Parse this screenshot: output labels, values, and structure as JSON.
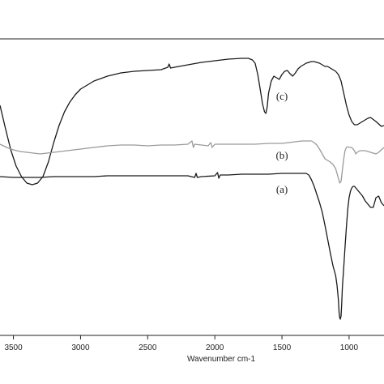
{
  "chart_data": {
    "type": "line",
    "title": "",
    "xlabel": "Wavenumber cm-1",
    "ylabel": "",
    "xlim": [
      3600,
      740
    ],
    "x_reversed": true,
    "grid": false,
    "x_ticks": [
      {
        "value": 3500,
        "label": "3500"
      },
      {
        "value": 3000,
        "label": "3000"
      },
      {
        "value": 2500,
        "label": "2500"
      },
      {
        "value": 2000,
        "label": "2000"
      },
      {
        "value": 1500,
        "label": "1500"
      },
      {
        "value": 1000,
        "label": "1000"
      }
    ],
    "series": [
      {
        "name": "(c)",
        "label_at": [
          1500,
          123
        ],
        "color": "#1a1a1a",
        "points": [
          [
            3600,
            130
          ],
          [
            3560,
            158
          ],
          [
            3520,
            185
          ],
          [
            3480,
            205
          ],
          [
            3440,
            218
          ],
          [
            3400,
            226
          ],
          [
            3360,
            228
          ],
          [
            3320,
            226
          ],
          [
            3280,
            218
          ],
          [
            3240,
            200
          ],
          [
            3200,
            176
          ],
          [
            3160,
            155
          ],
          [
            3120,
            138
          ],
          [
            3080,
            126
          ],
          [
            3040,
            117
          ],
          [
            3000,
            110
          ],
          [
            2900,
            100
          ],
          [
            2800,
            94
          ],
          [
            2700,
            90
          ],
          [
            2600,
            88
          ],
          [
            2500,
            87
          ],
          [
            2400,
            86
          ],
          [
            2350,
            83
          ],
          [
            2340,
            79
          ],
          [
            2330,
            84
          ],
          [
            2300,
            83
          ],
          [
            2200,
            80
          ],
          [
            2100,
            77
          ],
          [
            2000,
            75
          ],
          [
            1900,
            73
          ],
          [
            1800,
            72
          ],
          [
            1750,
            72
          ],
          [
            1720,
            74
          ],
          [
            1700,
            78
          ],
          [
            1680,
            92
          ],
          [
            1660,
            112
          ],
          [
            1645,
            128
          ],
          [
            1630,
            138
          ],
          [
            1620,
            140
          ],
          [
            1610,
            132
          ],
          [
            1600,
            115
          ],
          [
            1580,
            100
          ],
          [
            1560,
            94
          ],
          [
            1540,
            96
          ],
          [
            1520,
            98
          ],
          [
            1500,
            92
          ],
          [
            1480,
            88
          ],
          [
            1460,
            87
          ],
          [
            1440,
            91
          ],
          [
            1420,
            94
          ],
          [
            1400,
            90
          ],
          [
            1380,
            85
          ],
          [
            1360,
            82
          ],
          [
            1340,
            80
          ],
          [
            1320,
            78
          ],
          [
            1300,
            77
          ],
          [
            1280,
            76
          ],
          [
            1260,
            76
          ],
          [
            1240,
            77
          ],
          [
            1220,
            78
          ],
          [
            1200,
            80
          ],
          [
            1180,
            82
          ],
          [
            1160,
            82
          ],
          [
            1140,
            84
          ],
          [
            1120,
            86
          ],
          [
            1100,
            88
          ],
          [
            1080,
            92
          ],
          [
            1060,
            100
          ],
          [
            1040,
            115
          ],
          [
            1020,
            130
          ],
          [
            1000,
            142
          ],
          [
            980,
            150
          ],
          [
            960,
            154
          ],
          [
            940,
            154
          ],
          [
            920,
            152
          ],
          [
            900,
            150
          ],
          [
            880,
            148
          ],
          [
            860,
            146
          ],
          [
            840,
            145
          ],
          [
            800,
            150
          ],
          [
            760,
            156
          ],
          [
            740,
            155
          ]
        ]
      },
      {
        "name": "(b)",
        "label_at": [
          1500,
          196
        ],
        "color": "#9a9a9a",
        "points": [
          [
            3600,
            178
          ],
          [
            3550,
            182
          ],
          [
            3500,
            185
          ],
          [
            3450,
            187
          ],
          [
            3400,
            188
          ],
          [
            3350,
            189
          ],
          [
            3300,
            190
          ],
          [
            3250,
            189
          ],
          [
            3200,
            188
          ],
          [
            3150,
            187
          ],
          [
            3100,
            186
          ],
          [
            3050,
            185
          ],
          [
            3000,
            184
          ],
          [
            2900,
            182
          ],
          [
            2800,
            180
          ],
          [
            2700,
            179
          ],
          [
            2600,
            179
          ],
          [
            2500,
            180
          ],
          [
            2400,
            179
          ],
          [
            2300,
            179
          ],
          [
            2200,
            178
          ],
          [
            2170,
            174
          ],
          [
            2160,
            182
          ],
          [
            2150,
            178
          ],
          [
            2100,
            179
          ],
          [
            2050,
            180
          ],
          [
            2030,
            176
          ],
          [
            2020,
            182
          ],
          [
            2000,
            178
          ],
          [
            1900,
            178
          ],
          [
            1800,
            178
          ],
          [
            1700,
            178
          ],
          [
            1600,
            177
          ],
          [
            1500,
            177
          ],
          [
            1450,
            176
          ],
          [
            1400,
            175
          ],
          [
            1350,
            174
          ],
          [
            1300,
            174
          ],
          [
            1280,
            174
          ],
          [
            1260,
            176
          ],
          [
            1240,
            179
          ],
          [
            1220,
            184
          ],
          [
            1200,
            190
          ],
          [
            1180,
            196
          ],
          [
            1160,
            198
          ],
          [
            1140,
            200
          ],
          [
            1120,
            203
          ],
          [
            1100,
            208
          ],
          [
            1090,
            214
          ],
          [
            1080,
            220
          ],
          [
            1070,
            226
          ],
          [
            1060,
            224
          ],
          [
            1050,
            210
          ],
          [
            1040,
            196
          ],
          [
            1030,
            186
          ],
          [
            1020,
            182
          ],
          [
            1010,
            181
          ],
          [
            1000,
            182
          ],
          [
            980,
            182
          ],
          [
            960,
            186
          ],
          [
            950,
            190
          ],
          [
            940,
            188
          ],
          [
            920,
            186
          ],
          [
            900,
            186
          ],
          [
            880,
            186
          ],
          [
            860,
            187
          ],
          [
            840,
            188
          ],
          [
            800,
            190
          ],
          [
            780,
            188
          ],
          [
            740,
            182
          ]
        ]
      },
      {
        "name": "(a)",
        "label_at": [
          1500,
          238
        ],
        "color": "#1a1a1a",
        "points": [
          [
            3600,
            218
          ],
          [
            3500,
            219
          ],
          [
            3400,
            219
          ],
          [
            3300,
            219
          ],
          [
            3200,
            218
          ],
          [
            3100,
            218
          ],
          [
            3000,
            218
          ],
          [
            2900,
            218
          ],
          [
            2800,
            217
          ],
          [
            2700,
            217
          ],
          [
            2600,
            217
          ],
          [
            2500,
            217
          ],
          [
            2400,
            217
          ],
          [
            2300,
            217
          ],
          [
            2200,
            217
          ],
          [
            2150,
            219
          ],
          [
            2140,
            214
          ],
          [
            2130,
            219
          ],
          [
            2100,
            218
          ],
          [
            2000,
            217
          ],
          [
            1980,
            213
          ],
          [
            1970,
            220
          ],
          [
            1960,
            216
          ],
          [
            1900,
            216
          ],
          [
            1800,
            215
          ],
          [
            1700,
            215
          ],
          [
            1600,
            215
          ],
          [
            1500,
            214
          ],
          [
            1450,
            214
          ],
          [
            1400,
            214
          ],
          [
            1350,
            214
          ],
          [
            1320,
            214
          ],
          [
            1300,
            216
          ],
          [
            1280,
            222
          ],
          [
            1260,
            230
          ],
          [
            1240,
            240
          ],
          [
            1220,
            250
          ],
          [
            1200,
            262
          ],
          [
            1180,
            278
          ],
          [
            1160,
            295
          ],
          [
            1140,
            312
          ],
          [
            1120,
            328
          ],
          [
            1100,
            340
          ],
          [
            1090,
            352
          ],
          [
            1080,
            370
          ],
          [
            1075,
            385
          ],
          [
            1070,
            392
          ],
          [
            1065,
            394
          ],
          [
            1060,
            390
          ],
          [
            1055,
            375
          ],
          [
            1050,
            355
          ],
          [
            1040,
            330
          ],
          [
            1030,
            305
          ],
          [
            1020,
            280
          ],
          [
            1010,
            258
          ],
          [
            1000,
            244
          ],
          [
            990,
            236
          ],
          [
            980,
            232
          ],
          [
            970,
            230
          ],
          [
            960,
            230
          ],
          [
            950,
            232
          ],
          [
            940,
            234
          ],
          [
            920,
            238
          ],
          [
            900,
            242
          ],
          [
            880,
            248
          ],
          [
            860,
            252
          ],
          [
            840,
            256
          ],
          [
            820,
            256
          ],
          [
            800,
            244
          ],
          [
            780,
            242
          ],
          [
            760,
            250
          ],
          [
            740,
            254
          ]
        ]
      }
    ]
  }
}
